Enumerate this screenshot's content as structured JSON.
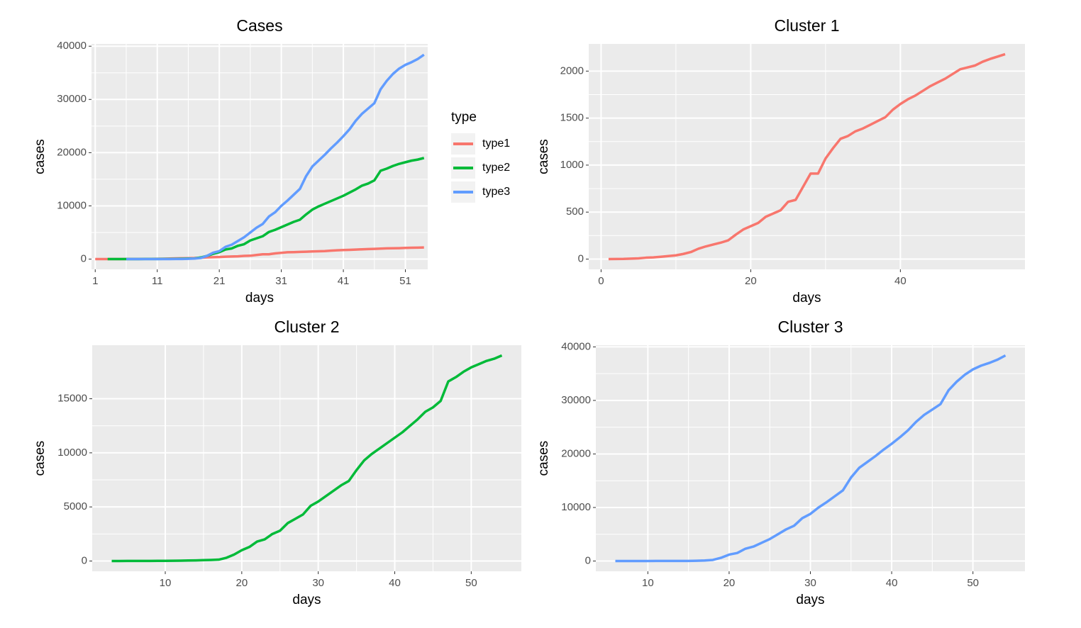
{
  "chart_data": [
    {
      "type": "line",
      "title": "Cases",
      "x_label": "days",
      "y_label": "cases",
      "legend_title": "type",
      "legend_position": "right",
      "grid": true,
      "xlim": [
        0.4,
        54.6
      ],
      "xticks": [
        1,
        11,
        21,
        31,
        41,
        51
      ],
      "ylim": [
        -1925,
        40425
      ],
      "yticks": [
        0,
        10000,
        20000,
        30000,
        40000
      ],
      "series": [
        {
          "name": "type1",
          "color": "#F8766D",
          "x": [
            1,
            2,
            3,
            4,
            5,
            6,
            7,
            8,
            9,
            10,
            11,
            12,
            13,
            14,
            15,
            16,
            17,
            18,
            19,
            20,
            21,
            22,
            23,
            24,
            25,
            26,
            27,
            28,
            29,
            30,
            31,
            32,
            33,
            34,
            35,
            36,
            37,
            38,
            39,
            40,
            41,
            42,
            43,
            44,
            45,
            46,
            47,
            48,
            49,
            50,
            51,
            52,
            53,
            54
          ],
          "values": [
            0,
            1,
            2,
            5,
            8,
            15,
            18,
            25,
            32,
            40,
            55,
            75,
            110,
            135,
            155,
            175,
            200,
            260,
            315,
            350,
            385,
            450,
            485,
            520,
            610,
            630,
            770,
            910,
            910,
            1070,
            1180,
            1280,
            1310,
            1360,
            1390,
            1430,
            1470,
            1510,
            1590,
            1650,
            1700,
            1740,
            1790,
            1840,
            1880,
            1920,
            1970,
            2020,
            2040,
            2060,
            2100,
            2130,
            2155,
            2180
          ]
        },
        {
          "name": "type2",
          "color": "#00BA38",
          "x": [
            3,
            4,
            5,
            6,
            7,
            8,
            9,
            10,
            11,
            12,
            13,
            14,
            15,
            16,
            17,
            18,
            19,
            20,
            21,
            22,
            23,
            24,
            25,
            26,
            27,
            28,
            29,
            30,
            31,
            32,
            33,
            34,
            35,
            36,
            37,
            38,
            39,
            40,
            41,
            42,
            43,
            44,
            45,
            46,
            47,
            48,
            49,
            50,
            51,
            52,
            53,
            54
          ],
          "values": [
            0,
            0,
            5,
            8,
            10,
            12,
            15,
            20,
            25,
            35,
            45,
            60,
            80,
            100,
            130,
            300,
            600,
            1000,
            1300,
            1800,
            2000,
            2500,
            2800,
            3500,
            3900,
            4300,
            5100,
            5500,
            6000,
            6500,
            7000,
            7400,
            8400,
            9300,
            9900,
            10400,
            10900,
            11400,
            11900,
            12500,
            13100,
            13800,
            14200,
            14800,
            16600,
            17000,
            17500,
            17900,
            18200,
            18500,
            18700,
            19000
          ]
        },
        {
          "name": "type3",
          "color": "#619CFF",
          "x": [
            6,
            7,
            8,
            9,
            10,
            11,
            12,
            13,
            14,
            15,
            16,
            17,
            18,
            19,
            20,
            21,
            22,
            23,
            24,
            25,
            26,
            27,
            28,
            29,
            30,
            31,
            32,
            33,
            34,
            35,
            36,
            37,
            38,
            39,
            40,
            41,
            42,
            43,
            44,
            45,
            46,
            47,
            48,
            49,
            50,
            51,
            52,
            53,
            54
          ],
          "values": [
            0,
            0,
            2,
            5,
            8,
            10,
            12,
            14,
            17,
            20,
            50,
            100,
            200,
            600,
            1200,
            1500,
            2300,
            2700,
            3400,
            4100,
            5000,
            5900,
            6600,
            8000,
            8800,
            10000,
            11000,
            12100,
            13200,
            15600,
            17400,
            18500,
            19600,
            20800,
            21900,
            23100,
            24400,
            26000,
            27300,
            28300,
            29300,
            31900,
            33500,
            34800,
            35800,
            36500,
            37000,
            37600,
            38400
          ]
        }
      ]
    },
    {
      "type": "line",
      "title": "Cluster 1",
      "x_label": "days",
      "y_label": "cases",
      "grid": true,
      "color": "#F8766D",
      "xlim": [
        -1.65,
        56.65
      ],
      "xticks": [
        0,
        20,
        40
      ],
      "ylim": [
        -109,
        2289
      ],
      "yticks": [
        0,
        500,
        1000,
        1500,
        2000
      ],
      "x": [
        1,
        2,
        3,
        4,
        5,
        6,
        7,
        8,
        9,
        10,
        11,
        12,
        13,
        14,
        15,
        16,
        17,
        18,
        19,
        20,
        21,
        22,
        23,
        24,
        25,
        26,
        27,
        28,
        29,
        30,
        31,
        32,
        33,
        34,
        35,
        36,
        37,
        38,
        39,
        40,
        41,
        42,
        43,
        44,
        45,
        46,
        47,
        48,
        49,
        50,
        51,
        52,
        53,
        54
      ],
      "values": [
        0,
        1,
        2,
        5,
        8,
        15,
        18,
        25,
        32,
        40,
        55,
        75,
        110,
        135,
        155,
        175,
        200,
        260,
        315,
        350,
        385,
        450,
        485,
        520,
        610,
        630,
        770,
        910,
        910,
        1070,
        1180,
        1280,
        1310,
        1360,
        1390,
        1430,
        1470,
        1510,
        1590,
        1650,
        1700,
        1740,
        1790,
        1840,
        1880,
        1920,
        1970,
        2020,
        2040,
        2060,
        2100,
        2130,
        2155,
        2180
      ]
    },
    {
      "type": "line",
      "title": "Cluster 2",
      "x_label": "days",
      "y_label": "cases",
      "grid": true,
      "color": "#00BA38",
      "xlim": [
        0.45,
        56.55
      ],
      "xticks": [
        10,
        20,
        30,
        40,
        50
      ],
      "ylim": [
        -950,
        19950
      ],
      "yticks": [
        0,
        5000,
        10000,
        15000
      ],
      "x": [
        3,
        4,
        5,
        6,
        7,
        8,
        9,
        10,
        11,
        12,
        13,
        14,
        15,
        16,
        17,
        18,
        19,
        20,
        21,
        22,
        23,
        24,
        25,
        26,
        27,
        28,
        29,
        30,
        31,
        32,
        33,
        34,
        35,
        36,
        37,
        38,
        39,
        40,
        41,
        42,
        43,
        44,
        45,
        46,
        47,
        48,
        49,
        50,
        51,
        52,
        53,
        54
      ],
      "values": [
        0,
        0,
        5,
        8,
        10,
        12,
        15,
        20,
        25,
        35,
        45,
        60,
        80,
        100,
        130,
        300,
        600,
        1000,
        1300,
        1800,
        2000,
        2500,
        2800,
        3500,
        3900,
        4300,
        5100,
        5500,
        6000,
        6500,
        7000,
        7400,
        8400,
        9300,
        9900,
        10400,
        10900,
        11400,
        11900,
        12500,
        13100,
        13800,
        14200,
        14800,
        16600,
        17000,
        17500,
        17900,
        18200,
        18500,
        18700,
        19000
      ]
    },
    {
      "type": "line",
      "title": "Cluster 3",
      "x_label": "days",
      "y_label": "cases",
      "grid": true,
      "color": "#619CFF",
      "xlim": [
        3.6,
        56.4
      ],
      "xticks": [
        10,
        20,
        30,
        40,
        50
      ],
      "ylim": [
        -1920,
        40320
      ],
      "yticks": [
        0,
        10000,
        20000,
        30000,
        40000
      ],
      "x": [
        6,
        7,
        8,
        9,
        10,
        11,
        12,
        13,
        14,
        15,
        16,
        17,
        18,
        19,
        20,
        21,
        22,
        23,
        24,
        25,
        26,
        27,
        28,
        29,
        30,
        31,
        32,
        33,
        34,
        35,
        36,
        37,
        38,
        39,
        40,
        41,
        42,
        43,
        44,
        45,
        46,
        47,
        48,
        49,
        50,
        51,
        52,
        53,
        54
      ],
      "values": [
        0,
        0,
        2,
        5,
        8,
        10,
        12,
        14,
        17,
        20,
        50,
        100,
        200,
        600,
        1200,
        1500,
        2300,
        2700,
        3400,
        4100,
        5000,
        5900,
        6600,
        8000,
        8800,
        10000,
        11000,
        12100,
        13200,
        15600,
        17400,
        18500,
        19600,
        20800,
        21900,
        23100,
        24400,
        26000,
        27300,
        28300,
        29300,
        31900,
        33500,
        34800,
        35800,
        36500,
        37000,
        37600,
        38400
      ]
    }
  ]
}
